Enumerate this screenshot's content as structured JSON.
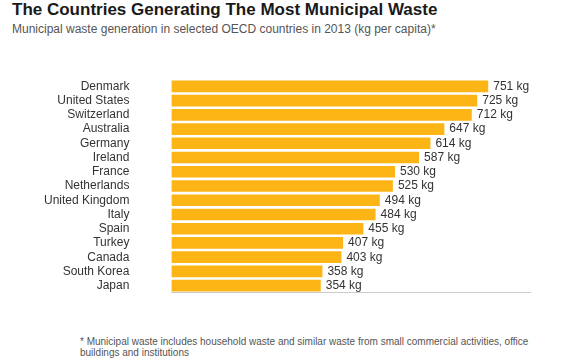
{
  "chart_data": {
    "type": "bar",
    "orientation": "horizontal",
    "title": "The Countries Generating The Most Municipal Waste",
    "subtitle": "Municipal waste generation in selected OECD countries in 2013 (kg per capita)*",
    "annotations": [
      "* Municipal waste includes household waste and similar waste from small commercial activities, office buildings and institutions"
    ],
    "categories": [
      "Denmark",
      "United States",
      "Switzerland",
      "Australia",
      "Germany",
      "Ireland",
      "France",
      "Netherlands",
      "United Kingdom",
      "Italy",
      "Spain",
      "Turkey",
      "Canada",
      "South Korea",
      "Japan"
    ],
    "values": [
      751,
      725,
      712,
      647,
      614,
      587,
      530,
      525,
      494,
      484,
      455,
      407,
      403,
      358,
      354
    ],
    "value_labels": [
      "751 kg",
      "725 kg",
      "712 kg",
      "647 kg",
      "614 kg",
      "587 kg",
      "530 kg",
      "525 kg",
      "494 kg",
      "484 kg",
      "455 kg",
      "407 kg",
      "403 kg",
      "358 kg",
      "354 kg"
    ],
    "color": "#fdb515",
    "xlim": [
      0,
      850
    ],
    "grid": false,
    "data_labels": true,
    "tick_labels": "y"
  }
}
